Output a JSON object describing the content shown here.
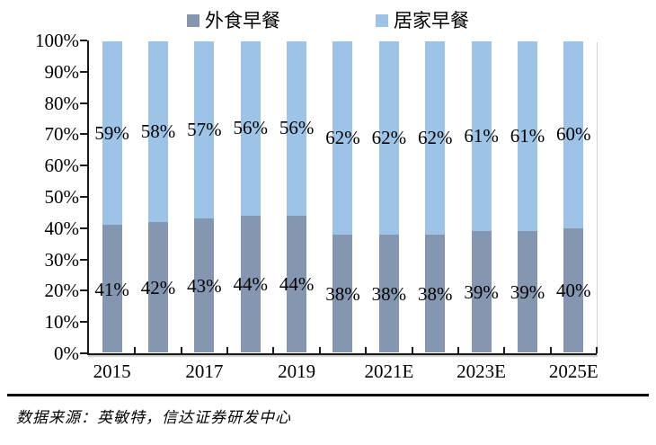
{
  "legend": [
    {
      "label": "外食早餐",
      "color": "#8496B0"
    },
    {
      "label": "居家早餐",
      "color": "#9DC3E6"
    }
  ],
  "chart_data": {
    "type": "bar",
    "stacked": true,
    "percent_stacked": true,
    "title": "",
    "xlabel": "",
    "ylabel": "",
    "categories": [
      "2015",
      "",
      "2017",
      "",
      "2019",
      "",
      "2021E",
      "",
      "2023E",
      "",
      "2025E"
    ],
    "series": [
      {
        "name": "外食早餐",
        "color": "#8496B0",
        "values": [
          41,
          42,
          43,
          44,
          44,
          38,
          38,
          38,
          39,
          39,
          40
        ]
      },
      {
        "name": "居家早餐",
        "color": "#9DC3E6",
        "values": [
          59,
          58,
          57,
          56,
          56,
          62,
          62,
          62,
          61,
          61,
          60
        ]
      }
    ],
    "data_label_format": "{value}%",
    "ylim": [
      0,
      100
    ],
    "y_ticks": [
      "100%",
      "90%",
      "80%",
      "70%",
      "60%",
      "50%",
      "40%",
      "30%",
      "20%",
      "10%",
      "0%"
    ],
    "grid": false,
    "legend_position": "top"
  },
  "footer": {
    "source_text": "数据来源：英敏特，信达证券研发中心"
  }
}
